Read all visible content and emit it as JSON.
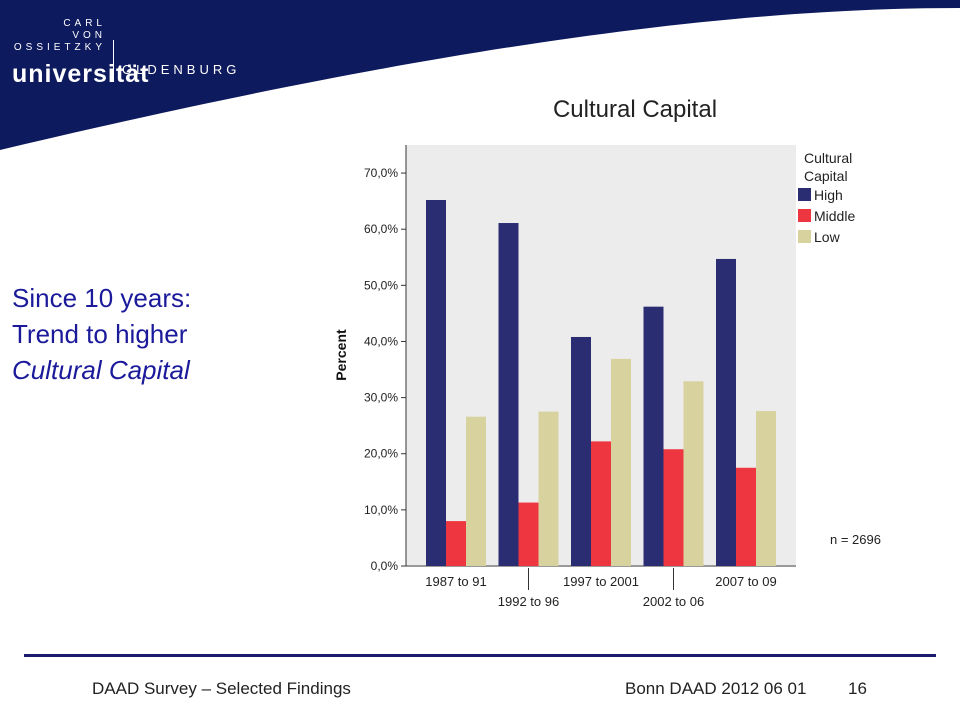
{
  "header": {
    "logo_line1": "CARL",
    "logo_line2": "VON",
    "logo_line3": "OSSIETZKY",
    "logo_main": "universität",
    "logo_city": "OLDENBURG",
    "band_color": "#0e1a5e"
  },
  "slide": {
    "text_line1": "Since 10 years:",
    "text_line2": "Trend to higher",
    "text_line3": "Cultural Capital"
  },
  "chart_data": {
    "type": "bar",
    "title": "Cultural Capital",
    "ylabel": "Percent",
    "xlabel": "",
    "ylim": [
      0,
      75
    ],
    "yticks": [
      "0,0%",
      "10,0%",
      "20,0%",
      "30,0%",
      "40,0%",
      "50,0%",
      "60,0%",
      "70,0%"
    ],
    "categories": [
      "1987 to 91",
      "1992 to 96",
      "1997 to 2001",
      "2002 to 06",
      "2007 to 09"
    ],
    "legend_title_line1": "Cultural",
    "legend_title_line2": "Capital",
    "legend_position": "top-right",
    "note": "n = 2696",
    "series": [
      {
        "name": "High",
        "color": "#2b2d73",
        "values": [
          65.2,
          61.1,
          40.8,
          46.2,
          54.7
        ]
      },
      {
        "name": "Middle",
        "color": "#ee3640",
        "values": [
          8.0,
          11.3,
          22.2,
          20.8,
          17.5
        ]
      },
      {
        "name": "Low",
        "color": "#d7d29e",
        "values": [
          26.6,
          27.5,
          36.9,
          32.9,
          27.6
        ]
      }
    ]
  },
  "footer": {
    "left": "DAAD Survey – Selected Findings",
    "right": "Bonn DAAD 2012 06 01",
    "page": "16"
  }
}
